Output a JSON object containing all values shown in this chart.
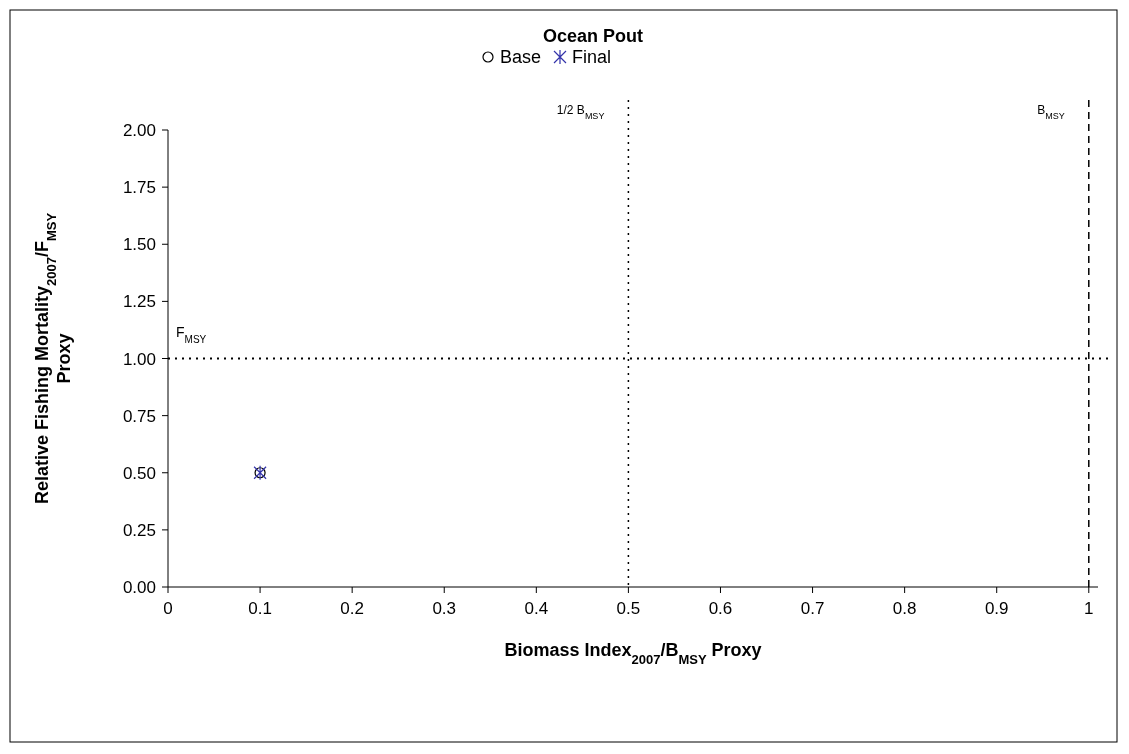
{
  "chart_data": {
    "type": "scatter",
    "title": "Ocean Pout",
    "xlabel": "Biomass Index$_{2007}$/B$_{MSY}$ Proxy",
    "ylabel": "Relative Fishing Mortality$_{2007}$/F$_{MSY}$ Proxy",
    "series": [
      {
        "name": "Base",
        "color": "#000000",
        "marker": "circle",
        "x": [
          0.1
        ],
        "values": [
          0.5
        ]
      },
      {
        "name": "Final",
        "color": "#3333aa",
        "marker": "cross",
        "x": [
          0.1
        ],
        "values": [
          0.5
        ]
      }
    ],
    "xlim": [
      0,
      1.01
    ],
    "ylim": [
      0,
      2
    ],
    "xticks": [
      0,
      0.1,
      0.2,
      0.3,
      0.4,
      0.5,
      0.6,
      0.7,
      0.8,
      0.9,
      1
    ],
    "yticks": [
      {
        "value": 0,
        "label": "0.00"
      },
      {
        "value": 0.25,
        "label": "0.25"
      },
      {
        "value": 0.5,
        "label": "0.50"
      },
      {
        "value": 0.75,
        "label": "0.75"
      },
      {
        "value": 1,
        "label": "1.00"
      },
      {
        "value": 1.25,
        "label": "1.25"
      },
      {
        "value": 1.5,
        "label": "1.50"
      },
      {
        "value": 1.75,
        "label": "1.75"
      },
      {
        "value": 2,
        "label": "2.00"
      }
    ],
    "ref_lines": [
      {
        "axis": "x",
        "value": 0.5,
        "label": "1/2 B$_{MSY}$",
        "line_style": "dotted"
      },
      {
        "axis": "x",
        "value": 1,
        "label": "B$_{MSY}$",
        "line_style": "dashed"
      },
      {
        "axis": "y",
        "value": 1,
        "label": "F$_{MSY}$",
        "line_style": "dotted"
      }
    ],
    "legend": "top",
    "grid": false
  }
}
